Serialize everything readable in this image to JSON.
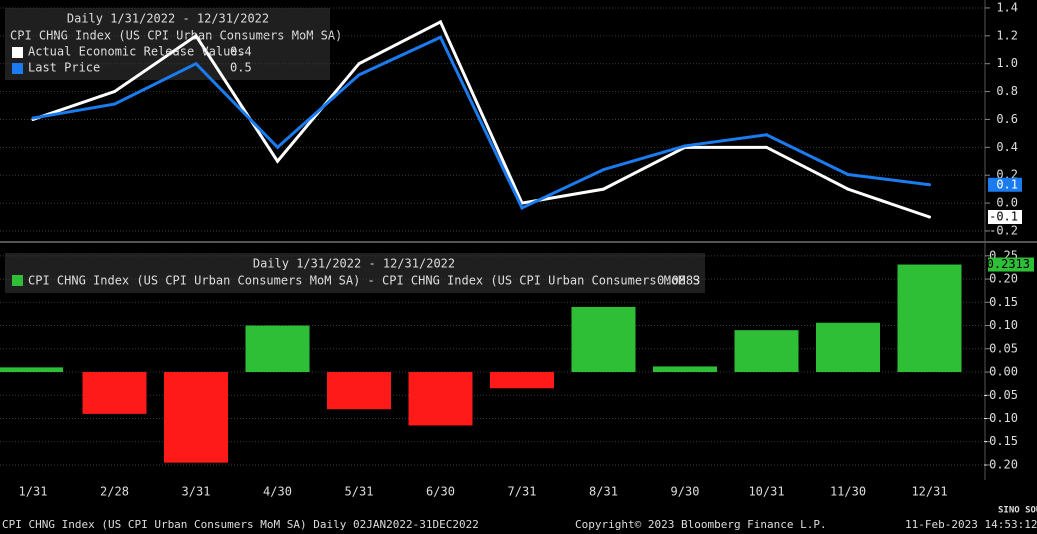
{
  "chart_data": [
    {
      "type": "line",
      "subtitle": "Daily 1/31/2022 - 12/31/2022",
      "title": "CPI CHNG Index (US CPI Urban Consumers MoM SA)",
      "categories": [
        "1/31",
        "2/28",
        "3/31",
        "4/30",
        "5/31",
        "6/30",
        "7/31",
        "8/31",
        "9/30",
        "10/31",
        "11/30",
        "12/31"
      ],
      "series": [
        {
          "name": "Actual Economic Release Values",
          "color": "#ffffff",
          "legend_value": 0.4,
          "last_label": "-0.1",
          "values": [
            0.6,
            0.8,
            1.2,
            0.3,
            1.0,
            1.3,
            0.0,
            0.1,
            0.4,
            0.4,
            0.1,
            -0.1
          ]
        },
        {
          "name": "Last Price",
          "color": "#1a7cf0",
          "legend_value": 0.5,
          "last_label": "0.1",
          "values": [
            0.61,
            0.71,
            1.0,
            0.4,
            0.92,
            1.19,
            -0.035,
            0.24,
            0.41,
            0.49,
            0.205,
            0.1313
          ]
        }
      ],
      "ylim": [
        -0.265,
        1.457
      ],
      "yticks": [
        {
          "value": -0.2,
          "label": "-0.2"
        },
        {
          "value": 0,
          "label": "0.0"
        },
        0.2,
        0.4,
        0.6,
        0.8,
        {
          "value": 1,
          "label": "1.0"
        },
        1.2,
        1.4
      ],
      "grid": true
    },
    {
      "type": "bar",
      "subtitle": "Daily 1/31/2022 - 12/31/2022",
      "categories": [
        "1/31",
        "2/28",
        "3/31",
        "4/30",
        "5/31",
        "6/30",
        "7/31",
        "8/31",
        "9/30",
        "10/31",
        "11/30",
        "12/31"
      ],
      "series": [
        {
          "name": "CPI CHNG Index (US CPI Urban Consumers MoM SA) - CPI CHNG Index (US CPI Urban Consumers MoM S",
          "color": "#2fbf37",
          "neg_color": "#ff1a1a",
          "legend_value": 0.0883,
          "values": [
            0.01,
            -0.09,
            -0.195,
            0.1,
            -0.08,
            -0.115,
            -0.035,
            0.14,
            0.012,
            0.09,
            0.106,
            0.2313
          ]
        }
      ],
      "ylim": [
        -0.228,
        0.269
      ],
      "yticks": [
        {
          "value": -0.2,
          "label": "-0.20"
        },
        {
          "value": -0.15,
          "label": "-0.15"
        },
        {
          "value": -0.1,
          "label": "-0.10"
        },
        {
          "value": -0.05,
          "label": "-0.05"
        },
        {
          "value": 0,
          "label": "0.00"
        },
        {
          "value": 0.05,
          "label": "0.05"
        },
        {
          "value": 0.1,
          "label": "0.10"
        },
        {
          "value": 0.15,
          "label": "0.15"
        },
        {
          "value": 0.2,
          "label": "0.20"
        },
        {
          "value": 0.25,
          "label": "0.25"
        }
      ],
      "grid": true
    }
  ],
  "footer": {
    "left": "CPI CHNG Index (US CPI Urban Consumers MoM SA)  Daily 02JAN2022-31DEC2022",
    "center": "Copyright© 2023 Bloomberg Finance L.P.",
    "right": "11-Feb-2023 14:53:12",
    "logo": "SINO SOUND"
  }
}
